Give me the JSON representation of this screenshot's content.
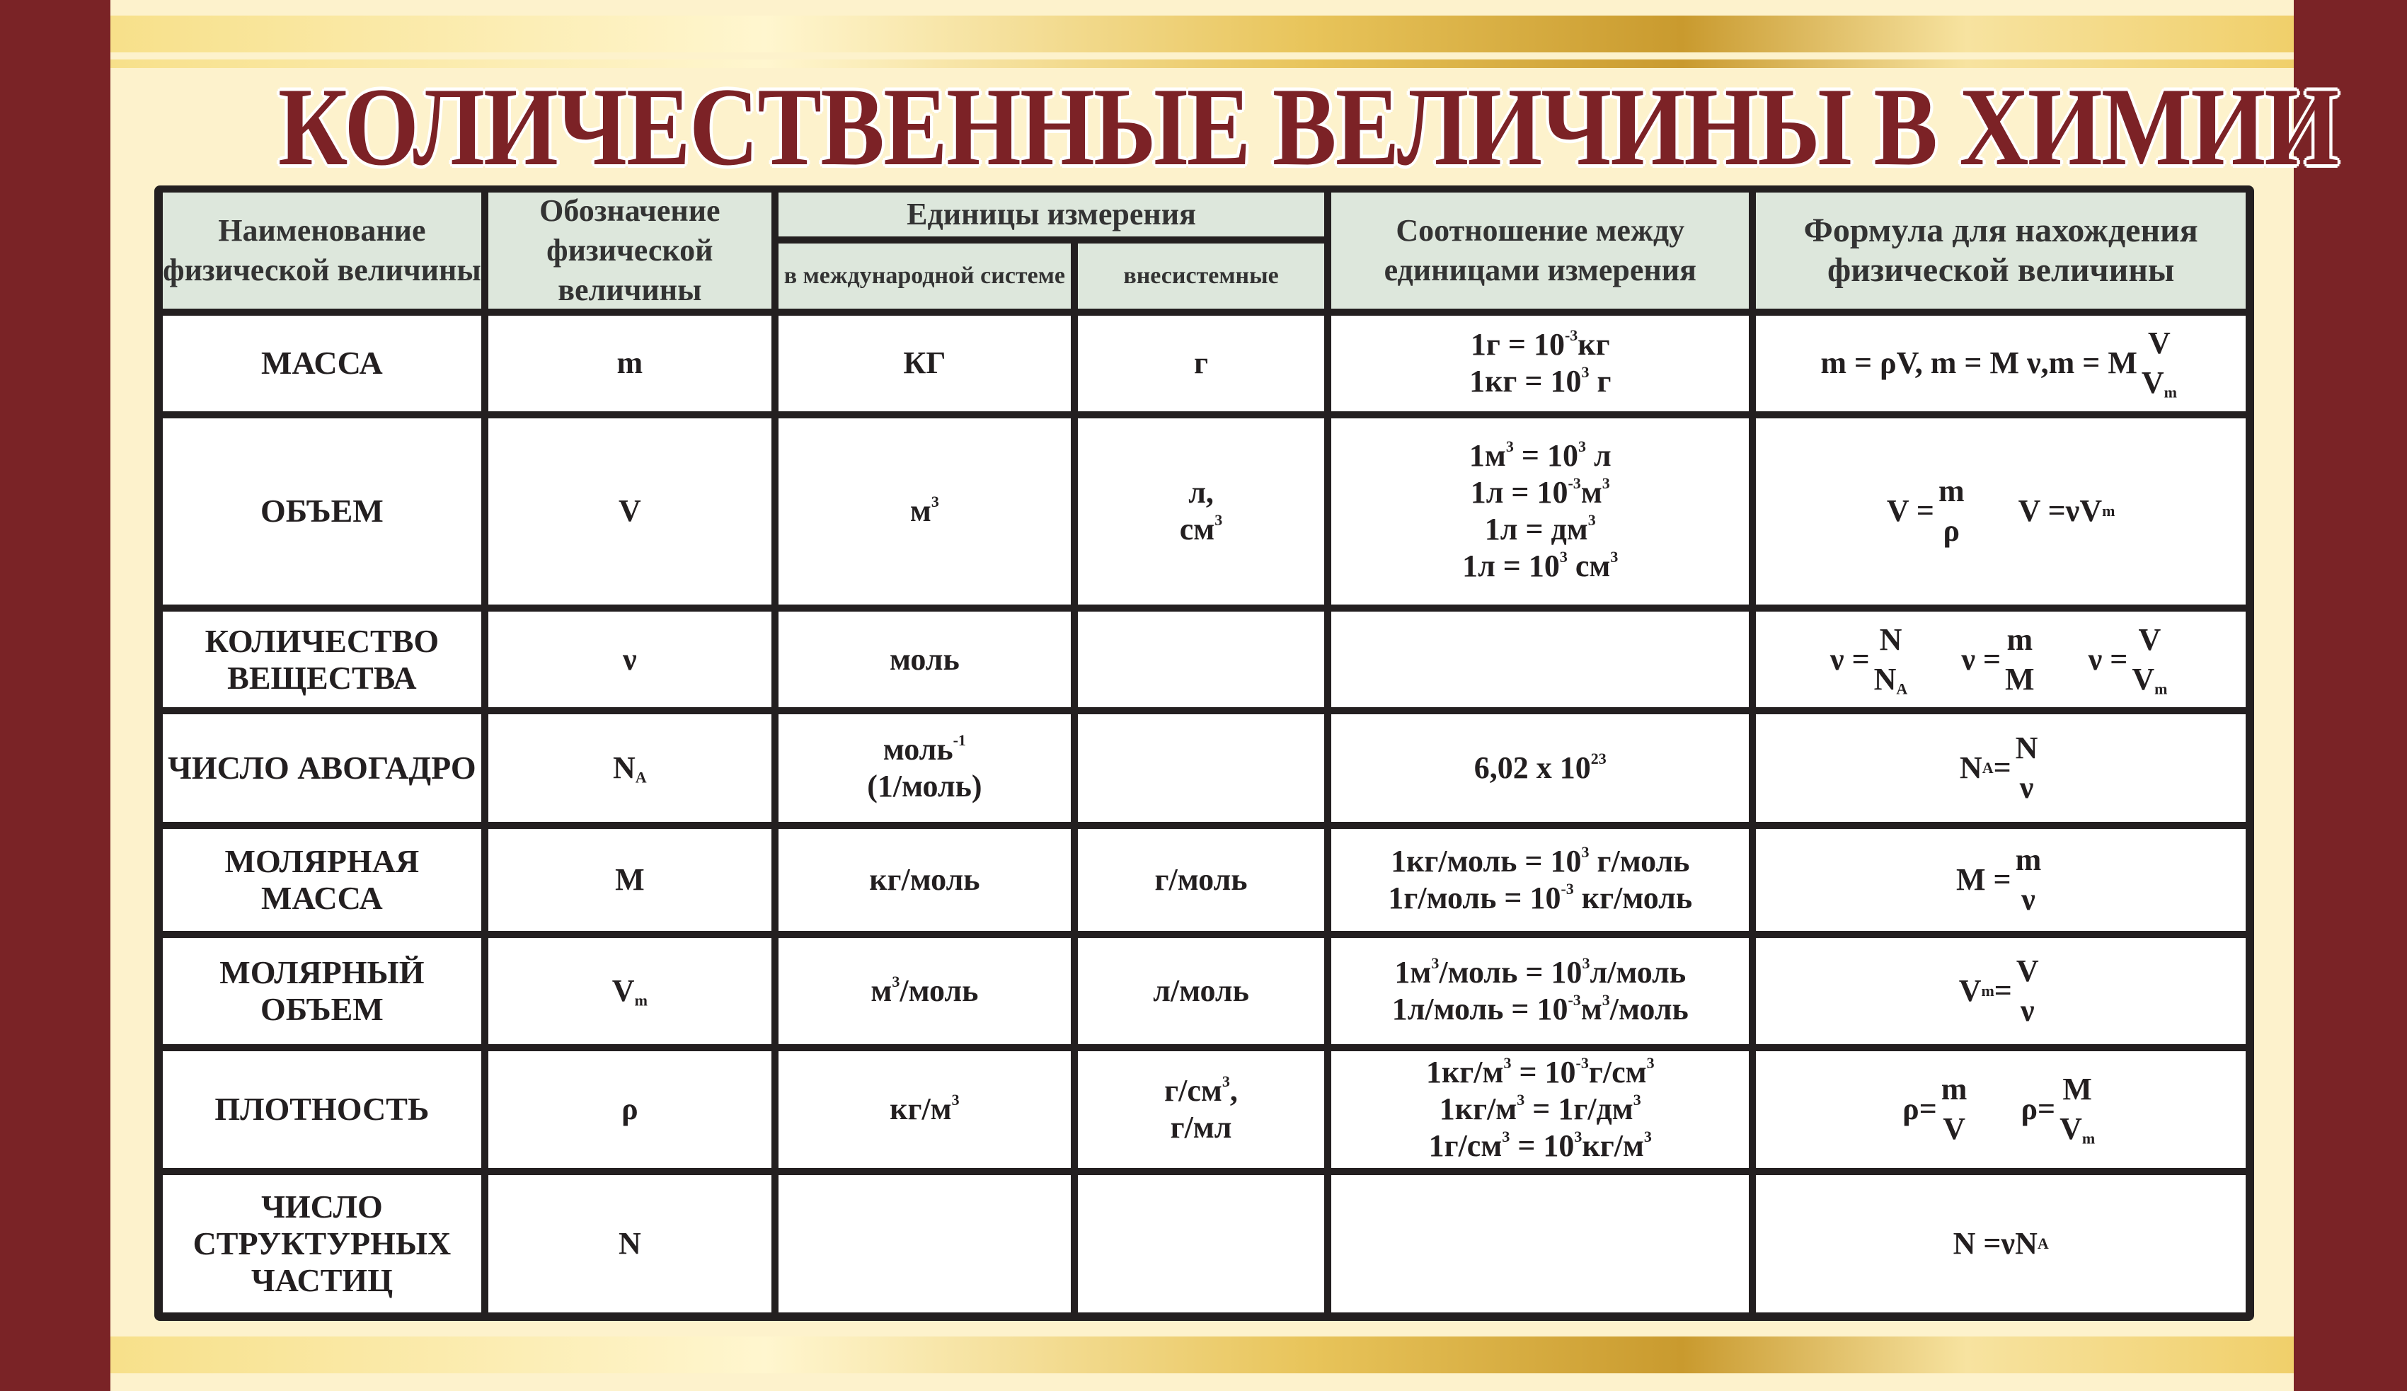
{
  "title": "КОЛИЧЕСТВЕННЫЕ ВЕЛИЧИНЫ В ХИМИИ",
  "colors": {
    "maroon": "#7a2326",
    "header_bg": "#dde7dc",
    "cream": "#fdf2cc",
    "gold": "#c99a2e",
    "grid": "#231f20"
  },
  "headers": {
    "name": "Наименование физической величины",
    "symbol": "Обозначение физической величины",
    "units": "Единицы измерения",
    "si": "в международной системе",
    "nonsi": "внесистемные",
    "relation": "Соотношение между единицами измерения",
    "formula": "Формула для нахождения физической величины"
  },
  "rows": [
    {
      "name": "МАССА",
      "symbol": [
        [
          "m"
        ]
      ],
      "si": [
        [
          "КГ"
        ]
      ],
      "nonsi": [
        [
          "г"
        ]
      ],
      "relation": [
        [
          "1г = 10",
          {
            "sup": "-3"
          },
          "кг"
        ],
        [
          "1кг = 10",
          {
            "sup": "3"
          },
          " г"
        ]
      ],
      "formula": [
        [
          "m = ρV, m = M ν,m = M",
          {
            "frac": [
              [
                "V"
              ],
              [
                "V",
                {
                  "sub": "m"
                }
              ]
            ]
          }
        ]
      ]
    },
    {
      "name": "ОБЪЕМ",
      "symbol": [
        [
          "V"
        ]
      ],
      "si": [
        [
          "м",
          {
            "sup": "3"
          }
        ]
      ],
      "nonsi": [
        [
          "л,"
        ],
        [
          "см",
          {
            "sup": "3"
          }
        ]
      ],
      "relation": [
        [
          "1м",
          {
            "sup": "3"
          },
          " = 10",
          {
            "sup": "3"
          },
          " л"
        ],
        [
          "1л = 10",
          {
            "sup": "-3"
          },
          "м",
          {
            "sup": "3"
          }
        ],
        [
          "1л = дм",
          {
            "sup": "3"
          }
        ],
        [
          "1л = 10",
          {
            "sup": "3"
          },
          " см",
          {
            "sup": "3"
          }
        ]
      ],
      "formula": [
        [
          "V =",
          {
            "frac": [
              [
                "m"
              ],
              [
                "ρ"
              ]
            ]
          }
        ],
        [
          "V =νV",
          {
            "sub": "m"
          }
        ]
      ]
    },
    {
      "name": "КОЛИЧЕСТВО ВЕЩЕСТВА",
      "symbol": [
        [
          "ν"
        ]
      ],
      "si": [
        [
          "моль"
        ]
      ],
      "nonsi": [],
      "relation": [],
      "formula": [
        [
          "ν =",
          {
            "frac": [
              [
                "N"
              ],
              [
                "N",
                {
                  "sub": "A"
                }
              ]
            ]
          }
        ],
        [
          "ν =",
          {
            "frac": [
              [
                "m"
              ],
              [
                "M"
              ]
            ]
          }
        ],
        [
          "ν =",
          {
            "frac": [
              [
                "V"
              ],
              [
                "V",
                {
                  "sub": "m"
                }
              ]
            ]
          }
        ]
      ]
    },
    {
      "name": "ЧИСЛО АВОГАДРО",
      "symbol": [
        [
          "N",
          {
            "sub": "A"
          }
        ]
      ],
      "si": [
        [
          "моль",
          {
            "sup": "-1"
          }
        ],
        [
          "(1/моль)"
        ]
      ],
      "nonsi": [],
      "relation": [
        [
          "6,02 x 10",
          {
            "sup": "23"
          }
        ]
      ],
      "formula": [
        [
          "N",
          {
            "sub": "A"
          },
          "=",
          {
            "frac": [
              [
                "N"
              ],
              [
                "ν"
              ]
            ]
          }
        ]
      ]
    },
    {
      "name": "МОЛЯРНАЯ МАССА",
      "symbol": [
        [
          "M"
        ]
      ],
      "si": [
        [
          "кг/моль"
        ]
      ],
      "nonsi": [
        [
          "г/моль"
        ]
      ],
      "relation": [
        [
          "1кг/моль = 10",
          {
            "sup": "3"
          },
          " г/моль"
        ],
        [
          "1г/моль = 10",
          {
            "sup": "-3"
          },
          " кг/моль"
        ]
      ],
      "formula": [
        [
          "M =",
          {
            "frac": [
              [
                "m"
              ],
              [
                "ν"
              ]
            ]
          }
        ]
      ]
    },
    {
      "name": "МОЛЯРНЫЙ ОБЪЕМ",
      "symbol": [
        [
          "V",
          {
            "sub": "m"
          }
        ]
      ],
      "si": [
        [
          "м",
          {
            "sup": "3"
          },
          "/моль"
        ]
      ],
      "nonsi": [
        [
          "л/моль"
        ]
      ],
      "relation": [
        [
          "1м",
          {
            "sup": "3"
          },
          "/моль = 10",
          {
            "sup": "3"
          },
          "л/моль"
        ],
        [
          "1л/моль = 10",
          {
            "sup": "-3"
          },
          "м",
          {
            "sup": "3"
          },
          "/моль"
        ]
      ],
      "formula": [
        [
          "V",
          {
            "sub": "m"
          },
          "=",
          {
            "frac": [
              [
                "V"
              ],
              [
                "ν"
              ]
            ]
          }
        ]
      ]
    },
    {
      "name": "ПЛОТНОСТЬ",
      "symbol": [
        [
          "ρ"
        ]
      ],
      "si": [
        [
          "кг/м",
          {
            "sup": "3"
          }
        ]
      ],
      "nonsi": [
        [
          "г/см",
          {
            "sup": "3"
          },
          ","
        ],
        [
          "г/мл"
        ]
      ],
      "relation": [
        [
          "1кг/м",
          {
            "sup": "3"
          },
          " = 10",
          {
            "sup": "-3"
          },
          "г/см",
          {
            "sup": "3"
          }
        ],
        [
          "1кг/м",
          {
            "sup": "3"
          },
          " = 1г/дм",
          {
            "sup": "3"
          }
        ],
        [
          "1г/см",
          {
            "sup": "3"
          },
          " = 10",
          {
            "sup": "3"
          },
          "кг/м",
          {
            "sup": "3"
          }
        ]
      ],
      "formula": [
        [
          "ρ=",
          {
            "frac": [
              [
                "m"
              ],
              [
                "V"
              ]
            ]
          }
        ],
        [
          "ρ=",
          {
            "frac": [
              [
                "M"
              ],
              [
                "V",
                {
                  "sub": "m"
                }
              ]
            ]
          }
        ]
      ]
    },
    {
      "name": "ЧИСЛО СТРУКТУРНЫХ ЧАСТИЦ",
      "symbol": [
        [
          "N"
        ]
      ],
      "si": [],
      "nonsi": [],
      "relation": [],
      "formula": [
        [
          "N =νN",
          {
            "sub": "A"
          }
        ]
      ]
    }
  ]
}
